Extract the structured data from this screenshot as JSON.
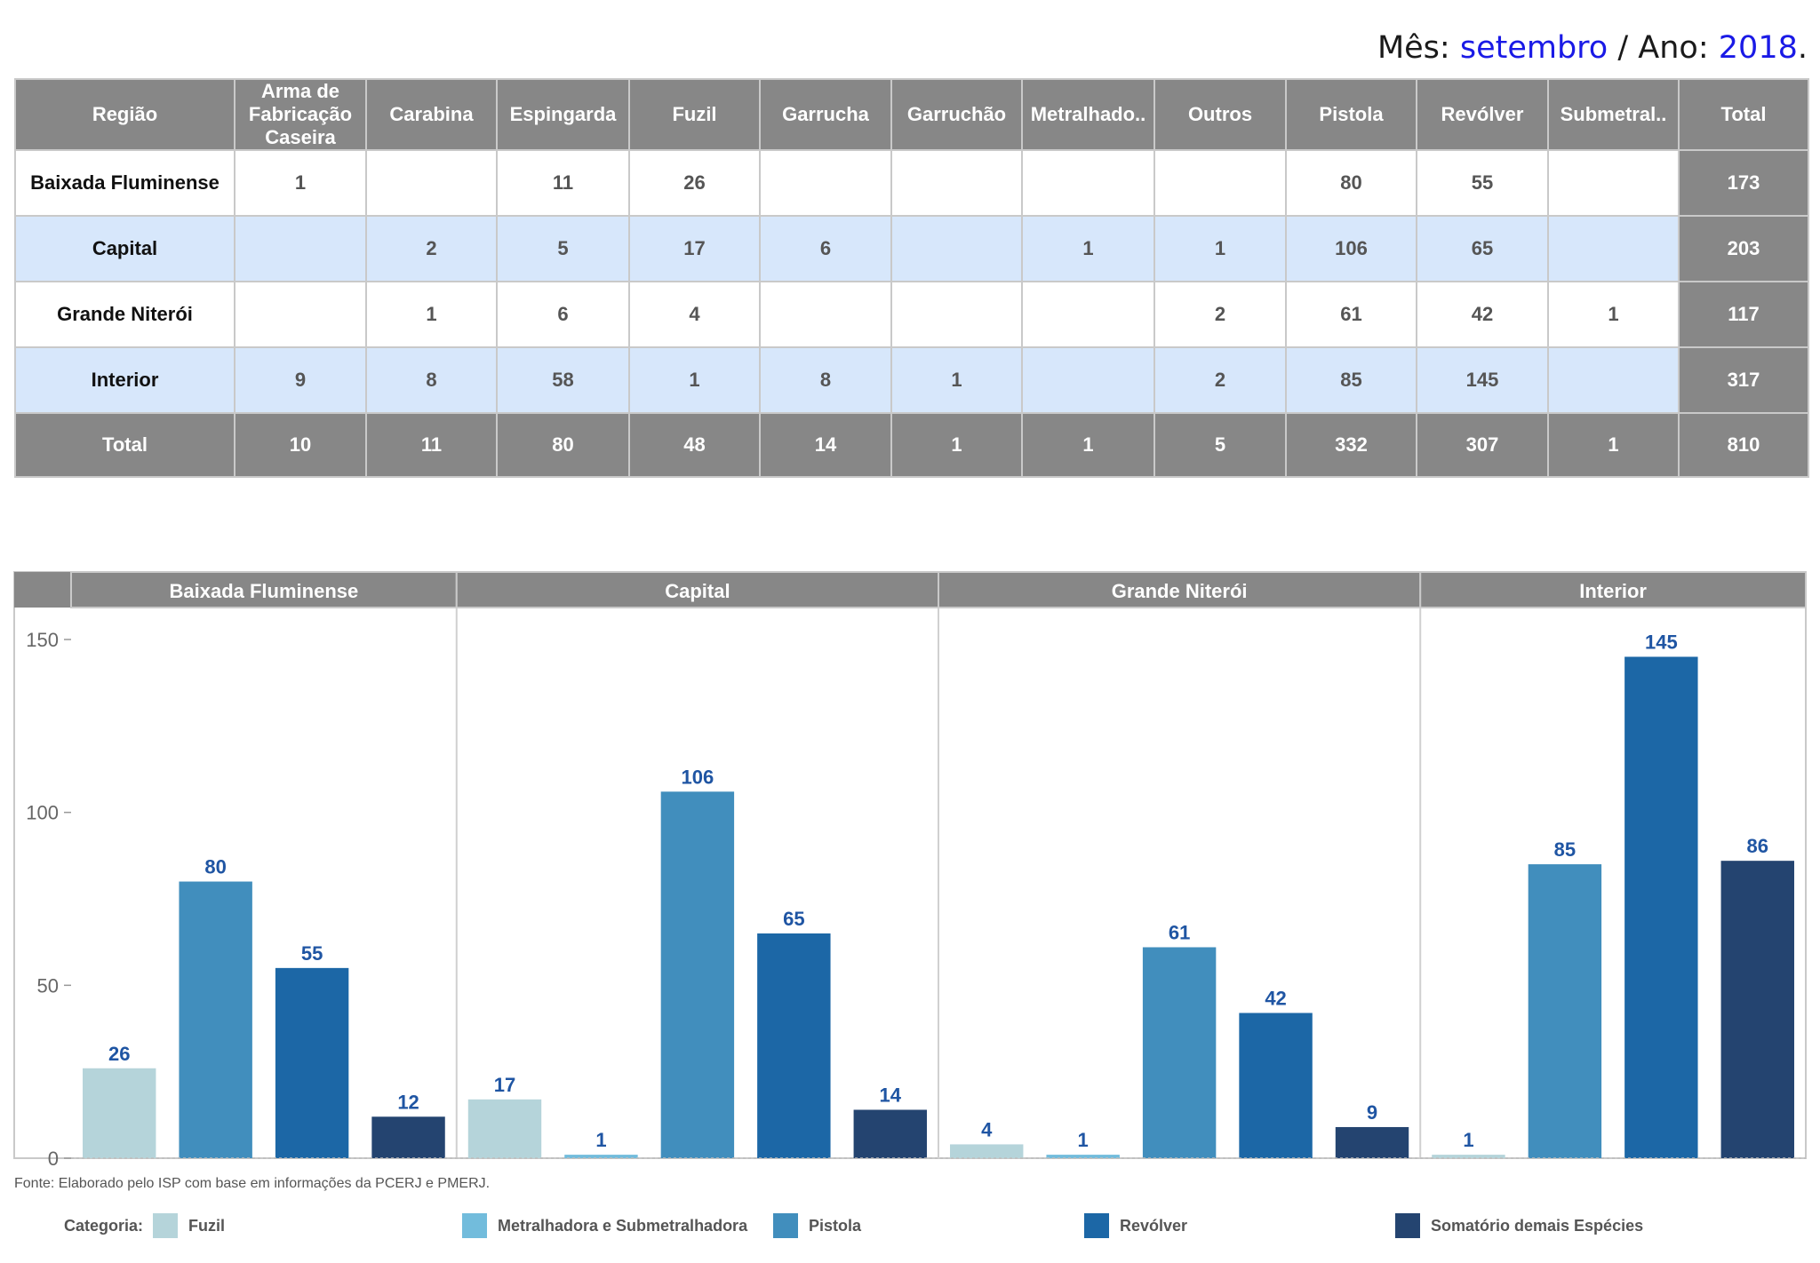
{
  "header": {
    "month_label": "Mês:",
    "month_value": "setembro",
    "separator": "/",
    "year_label": "Ano:",
    "year_value": "2018",
    "end": "."
  },
  "table": {
    "columns": [
      "Região",
      "Arma de Fabricação Caseira",
      "Carabina",
      "Espingarda",
      "Fuzil",
      "Garrucha",
      "Garruchão",
      "Metralhado..",
      "Outros",
      "Pistola",
      "Revólver",
      "Submetral..",
      "Total"
    ],
    "rows": [
      {
        "region": "Baixada Fluminense",
        "values": [
          "1",
          "",
          "11",
          "26",
          "",
          "",
          "",
          "",
          "80",
          "55",
          ""
        ],
        "total": "173"
      },
      {
        "region": "Capital",
        "values": [
          "",
          "2",
          "5",
          "17",
          "6",
          "",
          "1",
          "1",
          "106",
          "65",
          ""
        ],
        "total": "203"
      },
      {
        "region": "Grande Niterói",
        "values": [
          "",
          "1",
          "6",
          "4",
          "",
          "",
          "",
          "2",
          "61",
          "42",
          "1"
        ],
        "total": "117"
      },
      {
        "region": "Interior",
        "values": [
          "9",
          "8",
          "58",
          "1",
          "8",
          "1",
          "",
          "2",
          "85",
          "145",
          ""
        ],
        "total": "317"
      }
    ],
    "total_row": {
      "label": "Total",
      "values": [
        "10",
        "11",
        "80",
        "48",
        "14",
        "1",
        "1",
        "5",
        "332",
        "307",
        "1"
      ],
      "total": "810"
    }
  },
  "chart_data": {
    "type": "bar",
    "facets": [
      {
        "name": "Baixada Fluminense",
        "bars": [
          {
            "category": "Fuzil",
            "value": 26
          },
          {
            "category": "Pistola",
            "value": 80
          },
          {
            "category": "Revólver",
            "value": 55
          },
          {
            "category": "Somatório demais Espécies",
            "value": 12
          }
        ]
      },
      {
        "name": "Capital",
        "bars": [
          {
            "category": "Fuzil",
            "value": 17
          },
          {
            "category": "Metralhadora e Submetralhadora",
            "value": 1
          },
          {
            "category": "Pistola",
            "value": 106
          },
          {
            "category": "Revólver",
            "value": 65
          },
          {
            "category": "Somatório demais Espécies",
            "value": 14
          }
        ]
      },
      {
        "name": "Grande Niterói",
        "bars": [
          {
            "category": "Fuzil",
            "value": 4
          },
          {
            "category": "Metralhadora e Submetralhadora",
            "value": 1
          },
          {
            "category": "Pistola",
            "value": 61
          },
          {
            "category": "Revólver",
            "value": 42
          },
          {
            "category": "Somatório demais Espécies",
            "value": 9
          }
        ]
      },
      {
        "name": "Interior",
        "bars": [
          {
            "category": "Fuzil",
            "value": 1
          },
          {
            "category": "Pistola",
            "value": 85
          },
          {
            "category": "Revólver",
            "value": 145
          },
          {
            "category": "Somatório demais Espécies",
            "value": 86
          }
        ]
      }
    ],
    "yticks": [
      0,
      50,
      100,
      150
    ],
    "ylim": [
      0,
      158
    ],
    "legend_position": "bottom",
    "colors": {
      "Fuzil": "#b5d4da",
      "Metralhadora e Submetralhadora": "#72bcdc",
      "Pistola": "#418ebd",
      "Revólver": "#1c67a6",
      "Somatório demais Espécies": "#244470"
    },
    "value_label_color": "#1f55a3"
  },
  "source_note": "Fonte: Elaborado pelo ISP com base em informações da PCERJ e PMERJ.",
  "legend": {
    "title": "Categoria:",
    "items": [
      "Fuzil",
      "Metralhadora e Submetralhadora",
      "Pistola",
      "Revólver",
      "Somatório demais Espécies"
    ]
  }
}
